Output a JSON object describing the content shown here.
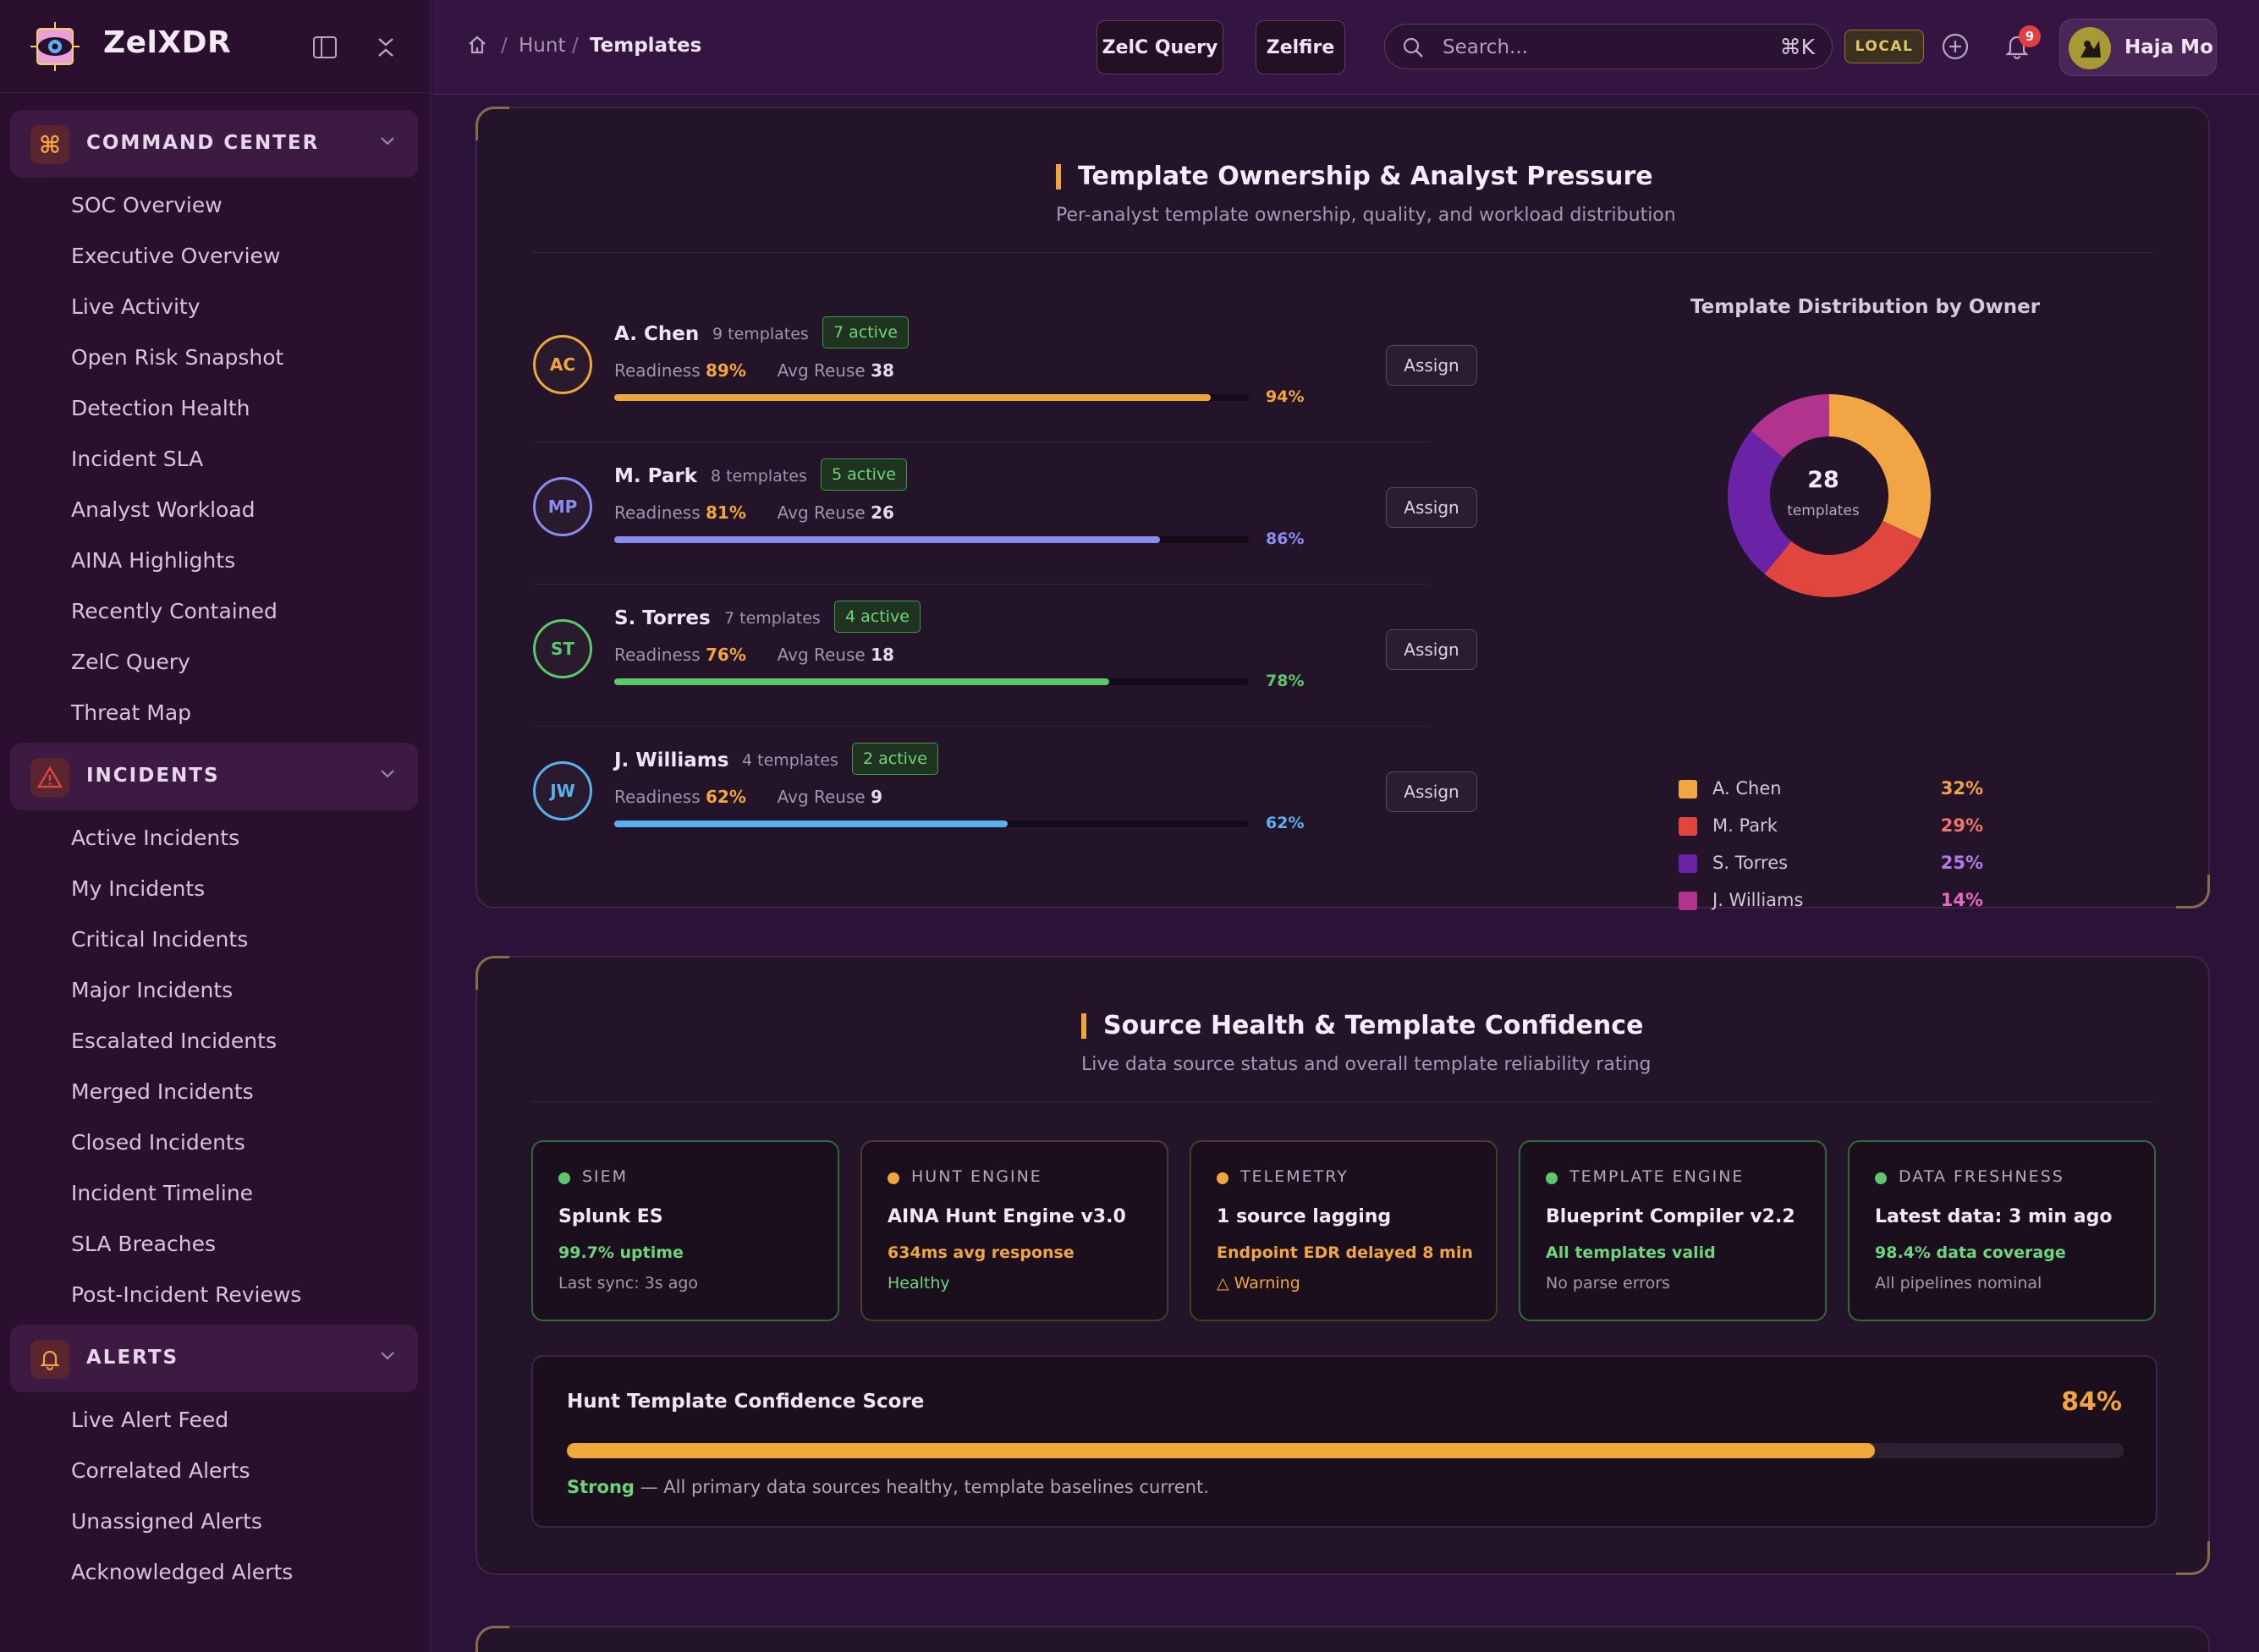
{
  "brand": {
    "name": "ZelXDR"
  },
  "sidebar": {
    "sections": [
      {
        "label": "COMMAND CENTER",
        "items": [
          "SOC Overview",
          "Executive Overview",
          "Live Activity",
          "Open Risk Snapshot",
          "Detection Health",
          "Incident SLA",
          "Analyst Workload",
          "AINA Highlights",
          "Recently Contained",
          "ZelC Query",
          "Threat Map"
        ]
      },
      {
        "label": "INCIDENTS",
        "items": [
          "Active Incidents",
          "My Incidents",
          "Critical Incidents",
          "Major Incidents",
          "Escalated Incidents",
          "Merged Incidents",
          "Closed Incidents",
          "Incident Timeline",
          "SLA Breaches",
          "Post-Incident Reviews"
        ]
      },
      {
        "label": "ALERTS",
        "items": [
          "Live Alert Feed",
          "Correlated Alerts",
          "Unassigned Alerts",
          "Acknowledged Alerts"
        ]
      }
    ]
  },
  "topbar": {
    "breadcrumb": [
      "Hunt",
      "Templates"
    ],
    "zelc_query": "ZelC Query",
    "zelfire": "Zelfire",
    "search_placeholder": "Search...",
    "search_shortcut": "⌘K",
    "env_badge": "LOCAL",
    "notifications": "9",
    "user": "Haja Mo"
  },
  "ownership": {
    "title": "Template Ownership & Analyst Pressure",
    "subtitle": "Per-analyst template ownership, quality, and workload distribution",
    "readiness_label": "Readiness",
    "reuse_label": "Avg Reuse",
    "assign_label": "Assign",
    "analysts": [
      {
        "initials": "AC",
        "name": "A. Chen",
        "templates": "9 templates",
        "active": "7 active",
        "readiness": "89%",
        "reuse": "38",
        "pct": "94%",
        "fill": 0.94,
        "color": "#f2a53c"
      },
      {
        "initials": "MP",
        "name": "M. Park",
        "templates": "8 templates",
        "active": "5 active",
        "readiness": "81%",
        "reuse": "26",
        "pct": "86%",
        "fill": 0.86,
        "color": "#8b8cf0"
      },
      {
        "initials": "ST",
        "name": "S. Torres",
        "templates": "7 templates",
        "active": "4 active",
        "readiness": "76%",
        "reuse": "18",
        "pct": "78%",
        "fill": 0.78,
        "color": "#5cc86a"
      },
      {
        "initials": "JW",
        "name": "J. Williams",
        "templates": "4 templates",
        "active": "2 active",
        "readiness": "62%",
        "reuse": "9",
        "pct": "62%",
        "fill": 0.62,
        "color": "#5ab0ee"
      }
    ],
    "donut": {
      "title": "Template Distribution by Owner",
      "total": "28",
      "total_label": "templates",
      "slices": [
        {
          "name": "A. Chen",
          "pct": "32%",
          "value": 32,
          "color": "#f2a544",
          "text": "#f2a544"
        },
        {
          "name": "M. Park",
          "pct": "29%",
          "value": 29,
          "color": "#e0463e",
          "text": "#f07468"
        },
        {
          "name": "S. Torres",
          "pct": "25%",
          "value": 25,
          "color": "#6a23a6",
          "text": "#b47ae8"
        },
        {
          "name": "J. Williams",
          "pct": "14%",
          "value": 14,
          "color": "#b0348e",
          "text": "#e46ac4"
        }
      ]
    }
  },
  "source_health": {
    "title": "Source Health & Template Confidence",
    "subtitle": "Live data source status and overall template reliability rating",
    "cards": [
      {
        "type": "SIEM",
        "name": "Splunk ES",
        "metric": "99.7% uptime",
        "note": "Last sync: 3s ago",
        "status": "green"
      },
      {
        "type": "HUNT ENGINE",
        "name": "AINA Hunt Engine v3.0",
        "metric": "634ms avg response",
        "note": "Healthy",
        "status": "amber"
      },
      {
        "type": "TELEMETRY",
        "name": "1 source lagging",
        "metric": "Endpoint EDR delayed 8 min",
        "note": "△ Warning",
        "status": "amber"
      },
      {
        "type": "TEMPLATE ENGINE",
        "name": "Blueprint Compiler v2.2",
        "metric": "All templates valid",
        "note": "No parse errors",
        "status": "green"
      },
      {
        "type": "DATA FRESHNESS",
        "name": "Latest data: 3 min ago",
        "metric": "98.4% data coverage",
        "note": "All pipelines nominal",
        "status": "green"
      }
    ],
    "confidence": {
      "title": "Hunt Template Confidence Score",
      "value": "84%",
      "fill": 0.84,
      "strength": "Strong",
      "note": " — All primary data sources healthy, template baselines current."
    }
  }
}
